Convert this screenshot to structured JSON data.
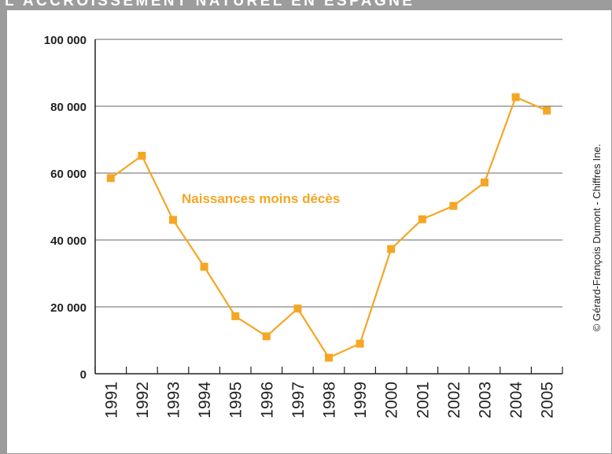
{
  "title": "L'ACCROISSEMENT NATUREL EN ESPAGNE",
  "credit": "© Gérard-François Dumont - Chiffres Ine.",
  "colors": {
    "series": "#f5a623",
    "grid": "#666666",
    "axis": "#222222",
    "frame": "#9c9c9c"
  },
  "chart_data": {
    "type": "line",
    "title": "L'ACCROISSEMENT NATUREL EN ESPAGNE",
    "xlabel": "",
    "ylabel": "",
    "x": [
      "1991",
      "1992",
      "1993",
      "1994",
      "1995",
      "1996",
      "1997",
      "1998",
      "1999",
      "2000",
      "2001",
      "2002",
      "2003",
      "2004",
      "2005"
    ],
    "ylim": [
      0,
      100000
    ],
    "yticks": [
      0,
      20000,
      40000,
      60000,
      80000,
      100000
    ],
    "ytick_labels": [
      "0",
      "20 000",
      "40 000",
      "60 000",
      "80 000",
      "100 000"
    ],
    "grid": true,
    "series": [
      {
        "name": "Naissances moins décès",
        "values": [
          58500,
          65200,
          46000,
          32000,
          17200,
          11200,
          19500,
          4800,
          9000,
          37300,
          46200,
          50200,
          57200,
          82700,
          78700
        ]
      }
    ]
  }
}
